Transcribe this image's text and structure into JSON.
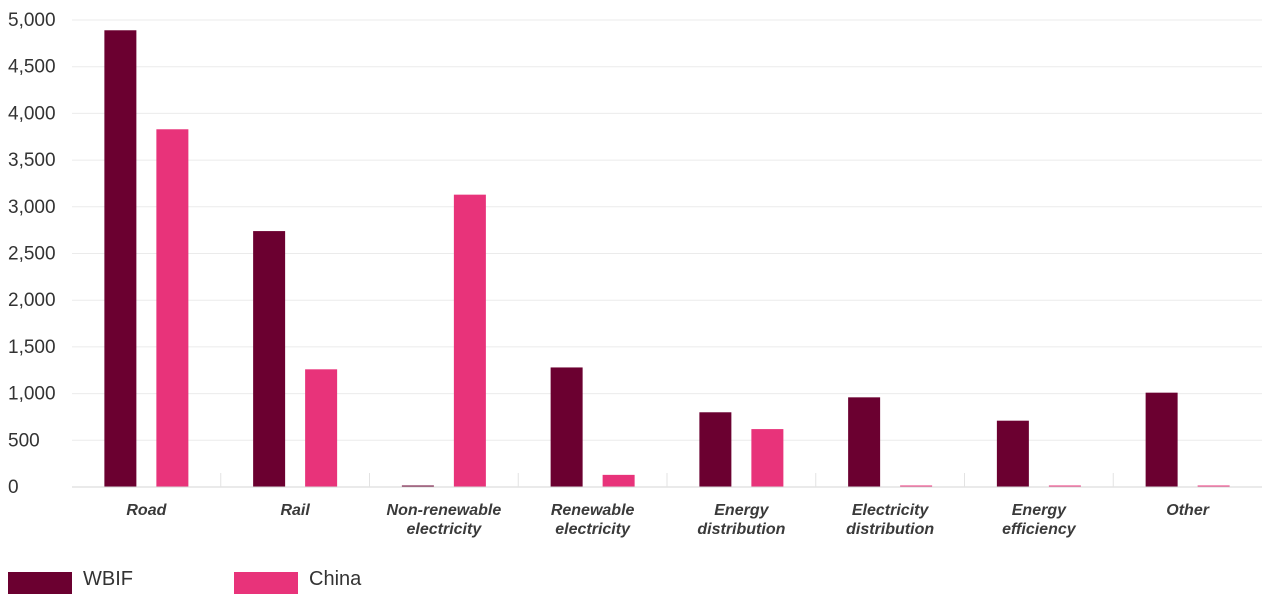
{
  "chart_data": {
    "type": "bar",
    "categories": [
      [
        "Road"
      ],
      [
        "Rail"
      ],
      [
        "Non-renewable",
        "electricity"
      ],
      [
        "Renewable",
        "electricity"
      ],
      [
        "Energy",
        "distribution"
      ],
      [
        "Electricity",
        "distribution"
      ],
      [
        "Energy",
        "efficiency"
      ],
      [
        "Other"
      ]
    ],
    "series": [
      {
        "name": "WBIF",
        "color": "#6b0030",
        "values": [
          4890,
          2740,
          0,
          1280,
          800,
          960,
          710,
          1010
        ]
      },
      {
        "name": "China",
        "color": "#e8337a",
        "values": [
          3830,
          1260,
          3130,
          130,
          620,
          0,
          0,
          0
        ]
      }
    ],
    "ylim": [
      0,
      5000
    ],
    "yticks": [
      0,
      500,
      1000,
      1500,
      2000,
      2500,
      3000,
      3500,
      4000,
      4500,
      5000
    ],
    "ytick_labels": [
      "0",
      "500",
      "1,000",
      "1,500",
      "2,000",
      "2,500",
      "3,000",
      "3,500",
      "4,000",
      "4,500",
      "5,000"
    ],
    "grid": true,
    "legend_position": "bottom-left",
    "title": "",
    "xlabel": "",
    "ylabel": ""
  }
}
